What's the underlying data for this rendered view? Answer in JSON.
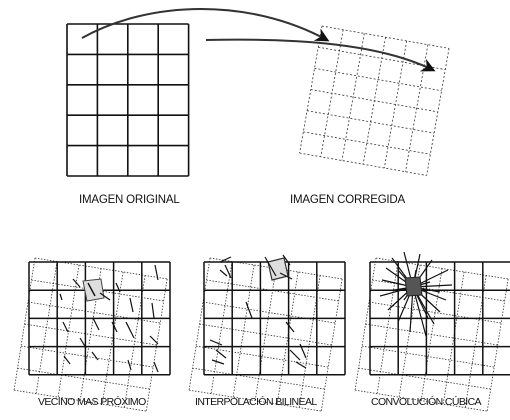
{
  "labels": {
    "original": "IMAGEN ORIGINAL",
    "corrected": "IMAGEN CORREGIDA",
    "nearest": "VECINO MAS PRÓXIMO",
    "bilinear": "INTERPOLACIÓN BILINEAL",
    "cubic": "CONVOLUCIÓN CÚBICA"
  },
  "colors": {
    "line": "#111111",
    "dotted": "#333333",
    "cell_fill": "#dedede"
  }
}
